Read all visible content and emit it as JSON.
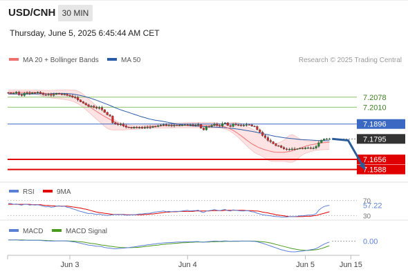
{
  "header": {
    "pair": "USD/CNH",
    "timeframe": "30 MIN",
    "datetime": "Thursday, June 5, 2025 6:45:44 AM CET"
  },
  "colors": {
    "candle_up": "#1e8a2e",
    "candle_down": "#d42a2a",
    "ma20": "#f07070",
    "bollinger_fill": "#fde3e3",
    "ma50": "#2a5caa",
    "support": "#e00000",
    "resistance_green": "#8cc26a",
    "pivot_blue": "#3a68c2",
    "arrow": "#2a5c9a",
    "rsi": "#5b7fd4",
    "rsi_ma": "#e00000",
    "macd": "#5b7fd4",
    "macd_signal": "#4a9a1e"
  },
  "chart_data": [
    {
      "type": "line",
      "panel": "price",
      "legend": [
        "MA 20 + Bollinger Bands",
        "MA 50"
      ],
      "legend_placement": "top-left",
      "credit": "Research © 2025 Trading Central",
      "ylim": [
        7.153,
        7.225
      ],
      "x_ticks": [
        "Jun 3",
        "Jun 4",
        "Jun 5",
        "Jun 15"
      ],
      "levels": [
        {
          "label": "7.2078",
          "value": 7.2078,
          "style": "resistance"
        },
        {
          "label": "7.2010",
          "value": 7.201,
          "style": "resistance"
        },
        {
          "label": "7.1896",
          "value": 7.1896,
          "style": "pivot"
        },
        {
          "label": "7.1795",
          "value": 7.1795,
          "style": "current"
        },
        {
          "label": "7.1656",
          "value": 7.1656,
          "style": "support"
        },
        {
          "label": "7.1588",
          "value": 7.1588,
          "style": "support"
        }
      ],
      "close": [
        7.2107,
        7.2102,
        7.2105,
        7.2112,
        7.2094,
        7.2089,
        7.2104,
        7.2107,
        7.2101,
        7.2108,
        7.2106,
        7.2112,
        7.2103,
        7.2095,
        7.2093,
        7.2097,
        7.209,
        7.2096,
        7.2103,
        7.21,
        7.2095,
        7.2098,
        7.209,
        7.2087,
        7.2079,
        7.2075,
        7.2059,
        7.2047,
        7.2037,
        7.2026,
        7.2015,
        7.2017,
        7.2009,
        7.2003,
        7.2007,
        7.1993,
        7.1975,
        7.1958,
        7.195,
        7.1904,
        7.1897,
        7.1891,
        7.1895,
        7.1884,
        7.1875,
        7.1873,
        7.1868,
        7.1875,
        7.1871,
        7.1872,
        7.187,
        7.1873,
        7.1875,
        7.1872,
        7.188,
        7.1879,
        7.1885,
        7.1888,
        7.1892,
        7.1887,
        7.1888,
        7.1883,
        7.1888,
        7.1886,
        7.1887,
        7.1889,
        7.1891,
        7.1889,
        7.1891,
        7.1887,
        7.1889,
        7.1893,
        7.1868,
        7.1856,
        7.1879,
        7.1878,
        7.1887,
        7.1896,
        7.1886,
        7.1882,
        7.1899,
        7.1904,
        7.1886,
        7.1879,
        7.1896,
        7.189,
        7.1889,
        7.1886,
        7.1888,
        7.1892,
        7.1891,
        7.1881,
        7.188,
        7.1857,
        7.1841,
        7.1818,
        7.1804,
        7.1785,
        7.1776,
        7.1762,
        7.1749,
        7.1748,
        7.1737,
        7.1727,
        7.1723,
        7.1725,
        7.1727,
        7.1726,
        7.1728,
        7.1732,
        7.1729,
        7.1735,
        7.1735,
        7.1732,
        7.1733,
        7.1744,
        7.1769,
        7.1787,
        7.1794,
        7.1795,
        7.1795
      ],
      "ma20": [
        7.211,
        7.211,
        7.211,
        7.211,
        7.211,
        7.211,
        7.211,
        7.211,
        7.211,
        7.211,
        7.211,
        7.2109,
        7.2108,
        7.2106,
        7.2103,
        7.2101,
        7.2099,
        7.2098,
        7.2099,
        7.21,
        7.2099,
        7.2096,
        7.2092,
        7.2088,
        7.2082,
        7.2075,
        7.2065,
        7.2054,
        7.2042,
        7.203,
        7.2018,
        7.2005,
        7.1993,
        7.1981,
        7.1969,
        7.1958,
        7.1947,
        7.1937,
        7.1927,
        7.1917,
        7.1908,
        7.1899,
        7.1891,
        7.1884,
        7.1878,
        7.1874,
        7.1872,
        7.1872,
        7.1872,
        7.1873,
        7.1874,
        7.1875,
        7.1877,
        7.1878,
        7.188,
        7.1881,
        7.1882,
        7.1883,
        7.1884,
        7.1885,
        7.1886,
        7.1886,
        7.1887,
        7.1887,
        7.1887,
        7.1887,
        7.1887,
        7.1887,
        7.1887,
        7.1887,
        7.1887,
        7.1887,
        7.1887,
        7.1886,
        7.1886,
        7.1886,
        7.1886,
        7.1887,
        7.1886,
        7.1884,
        7.1881,
        7.1876,
        7.187,
        7.1862,
        7.1853,
        7.1842,
        7.1829,
        7.1816,
        7.1802,
        7.1788,
        7.1775,
        7.1762,
        7.1752,
        7.1742,
        7.1734,
        7.1727,
        7.1721,
        7.1716,
        7.1711,
        7.1707,
        7.1705,
        7.1704,
        7.1704,
        7.1705,
        7.1707,
        7.171,
        7.1714,
        7.172,
        7.1726,
        7.1733,
        7.1739,
        7.1745,
        7.175,
        7.1755,
        7.1758,
        7.1762,
        7.1765,
        7.1768,
        7.177,
        7.1771,
        7.1772
      ],
      "bollinger_upper": [
        7.2126,
        7.2126,
        7.2126,
        7.2126,
        7.2126,
        7.2126,
        7.2126,
        7.2126,
        7.2126,
        7.2125,
        7.2125,
        7.2125,
        7.2124,
        7.2124,
        7.2124,
        7.2123,
        7.2124,
        7.2124,
        7.2125,
        7.2126,
        7.2127,
        7.2128,
        7.2128,
        7.2127,
        7.2126,
        7.2125,
        7.2119,
        7.211,
        7.2097,
        7.2082,
        7.2066,
        7.205,
        7.2034,
        7.2018,
        7.2003,
        7.1989,
        7.1975,
        7.1961,
        7.1948,
        7.1935,
        7.1921,
        7.191,
        7.1903,
        7.1899,
        7.1895,
        7.189,
        7.1887,
        7.1885,
        7.1885,
        7.1885,
        7.1886,
        7.1887,
        7.1888,
        7.1889,
        7.189,
        7.1891,
        7.1893,
        7.1894,
        7.1896,
        7.1897,
        7.1899,
        7.19,
        7.1901,
        7.1902,
        7.1903,
        7.1904,
        7.1905,
        7.1905,
        7.1906,
        7.1906,
        7.1906,
        7.1906,
        7.1906,
        7.1906,
        7.1906,
        7.1906,
        7.1906,
        7.1906,
        7.1903,
        7.1898,
        7.1897,
        7.1898,
        7.1903,
        7.1905,
        7.1907,
        7.1906,
        7.1905,
        7.1897,
        7.189,
        7.1883,
        7.1873,
        7.1863,
        7.1853,
        7.1842,
        7.1828,
        7.1815,
        7.18,
        7.1783,
        7.177,
        7.1763,
        7.1765,
        7.1769,
        7.1777,
        7.1787,
        7.1803,
        7.1819,
        7.1824,
        7.1817,
        7.1805,
        7.1795,
        7.1788,
        7.1783,
        7.1781,
        7.178,
        7.1781,
        7.1781,
        7.1782,
        7.1782,
        7.1782,
        7.1782,
        7.1782
      ],
      "bollinger_lower": [
        7.2096,
        7.2096,
        7.2096,
        7.2096,
        7.2096,
        7.2096,
        7.2096,
        7.2096,
        7.2097,
        7.2097,
        7.2098,
        7.2094,
        7.2089,
        7.2084,
        7.2077,
        7.2075,
        7.2073,
        7.207,
        7.2068,
        7.2067,
        7.2065,
        7.2062,
        7.2059,
        7.2056,
        7.205,
        7.2043,
        7.2033,
        7.2022,
        7.2008,
        7.1993,
        7.1977,
        7.1961,
        7.1944,
        7.1928,
        7.1912,
        7.1896,
        7.188,
        7.1866,
        7.1858,
        7.1855,
        7.1855,
        7.1856,
        7.1856,
        7.1856,
        7.1857,
        7.1858,
        7.1859,
        7.186,
        7.1861,
        7.1862,
        7.1863,
        7.1864,
        7.1865,
        7.1866,
        7.1867,
        7.1867,
        7.1868,
        7.1869,
        7.1869,
        7.187,
        7.187,
        7.187,
        7.1871,
        7.1871,
        7.1871,
        7.1871,
        7.1871,
        7.1871,
        7.1871,
        7.1871,
        7.1871,
        7.1871,
        7.187,
        7.187,
        7.187,
        7.1869,
        7.1869,
        7.1869,
        7.1869,
        7.1869,
        7.1866,
        7.1862,
        7.1855,
        7.1846,
        7.1834,
        7.182,
        7.1804,
        7.1786,
        7.1768,
        7.175,
        7.1733,
        7.1717,
        7.1703,
        7.1693,
        7.1685,
        7.1676,
        7.1664,
        7.1652,
        7.1645,
        7.1643,
        7.1642,
        7.1642,
        7.1642,
        7.1642,
        7.164,
        7.1637,
        7.1637,
        7.1643,
        7.1657,
        7.1675,
        7.1688,
        7.1697,
        7.1703,
        7.1709,
        7.1715,
        7.1718,
        7.172,
        7.1721,
        7.1722,
        7.1723,
        7.1725
      ],
      "ma50": [
        7.21,
        7.21,
        7.21,
        7.21,
        7.21,
        7.21,
        7.21,
        7.21,
        7.21,
        7.21,
        7.21,
        7.21,
        7.2101,
        7.2101,
        7.2101,
        7.2102,
        7.2102,
        7.2103,
        7.2103,
        7.2103,
        7.2103,
        7.2103,
        7.2102,
        7.2101,
        7.2099,
        7.2096,
        7.2093,
        7.2089,
        7.2085,
        7.208,
        7.2075,
        7.2069,
        7.2063,
        7.2057,
        7.205,
        7.2043,
        7.2036,
        7.2029,
        7.2022,
        7.2014,
        7.2006,
        7.1999,
        7.1992,
        7.1986,
        7.198,
        7.1974,
        7.1968,
        7.1962,
        7.1956,
        7.195,
        7.1944,
        7.1939,
        7.1934,
        7.1929,
        7.1925,
        7.1922,
        7.1919,
        7.1916,
        7.1913,
        7.191,
        7.1906,
        7.1903,
        7.1899,
        7.1896,
        7.1893,
        7.189,
        7.1888,
        7.1886,
        7.1884,
        7.1883,
        7.1882,
        7.1881,
        7.188,
        7.1879,
        7.1878,
        7.1877,
        7.1876,
        7.1875,
        7.1874,
        7.1873,
        7.1872,
        7.1871,
        7.1869,
        7.1867,
        7.1865,
        7.1863,
        7.1861,
        7.1858,
        7.1855,
        7.1852,
        7.1849,
        7.1846,
        7.1843,
        7.1839,
        7.1835,
        7.1831,
        7.1827,
        7.1823,
        7.1819,
        7.1815,
        7.1812,
        7.1809,
        7.1806,
        7.1803,
        7.1801,
        7.1799,
        7.1797,
        7.1795,
        7.1793,
        7.1791,
        7.179,
        7.1789,
        7.1788,
        7.1787,
        7.1786,
        7.1785,
        7.1784,
        7.1784,
        7.1783,
        7.1783,
        7.1783
      ],
      "projection": [
        [
          121,
          7.1795
        ],
        [
          127,
          7.1785
        ],
        [
          133,
          7.1595
        ]
      ]
    },
    {
      "type": "line",
      "panel": "rsi",
      "legend": [
        "RSI",
        "9MA"
      ],
      "legend_placement": "top-left",
      "ylim": [
        25,
        75
      ],
      "y_ticks": [
        {
          "label": "70",
          "value": 70
        },
        {
          "label": "30",
          "value": 30
        }
      ],
      "current_label": "57.22",
      "rsi": [
        62,
        62,
        60,
        61,
        59,
        58,
        60,
        60,
        58,
        59,
        58,
        59,
        57,
        55,
        53,
        54,
        52,
        53,
        55,
        56,
        54,
        55,
        52,
        51,
        48,
        46,
        43,
        41,
        39,
        37,
        35,
        36,
        34,
        33,
        34,
        32,
        31,
        30,
        31,
        32,
        33,
        32,
        33,
        32,
        31,
        31,
        32,
        32,
        33,
        34,
        34,
        35,
        36,
        36,
        38,
        39,
        40,
        41,
        42,
        40,
        41,
        40,
        41,
        41,
        41,
        42,
        43,
        44,
        42,
        43,
        43,
        44,
        40,
        38,
        42,
        43,
        44,
        46,
        44,
        43,
        45,
        46,
        43,
        42,
        45,
        44,
        43,
        42,
        42,
        43,
        42,
        40,
        39,
        36,
        34,
        32,
        31,
        30,
        29,
        28,
        27,
        27,
        26,
        26,
        26,
        27,
        27,
        27,
        28,
        29,
        29,
        30,
        31,
        31,
        32,
        35,
        44,
        50,
        54,
        56,
        57.22
      ],
      "ma9": [
        60,
        60,
        60,
        60,
        60,
        60,
        60,
        60,
        60,
        59,
        59,
        59,
        59,
        58,
        57,
        57,
        56,
        56,
        55,
        55,
        55,
        55,
        55,
        54,
        53,
        52,
        51,
        50,
        48,
        47,
        45,
        43,
        41,
        39,
        38,
        37,
        36,
        35,
        34,
        33,
        33,
        33,
        33,
        33,
        32,
        32,
        32,
        32,
        32,
        32,
        32,
        33,
        33,
        34,
        34,
        35,
        36,
        37,
        38,
        39,
        39,
        40,
        40,
        40,
        41,
        41,
        41,
        41,
        41,
        41,
        42,
        42,
        42,
        42,
        42,
        42,
        43,
        43,
        43,
        43,
        43,
        44,
        44,
        44,
        44,
        44,
        44,
        44,
        44,
        43,
        43,
        43,
        42,
        42,
        41,
        39,
        38,
        37,
        35,
        34,
        32,
        31,
        30,
        29,
        28,
        27,
        27,
        27,
        27,
        27,
        27,
        28,
        28,
        28,
        29,
        30,
        32,
        34,
        36,
        38,
        40
      ]
    },
    {
      "type": "line",
      "panel": "macd",
      "legend": [
        "MACD",
        "MACD Signal"
      ],
      "legend_placement": "top-left",
      "ylim": [
        -0.0055,
        0.0025
      ],
      "current_label": "0.00",
      "macd": [
        0.0005,
        0.0005,
        0.0005,
        0.0006,
        0.0004,
        0.0003,
        0.0004,
        0.0004,
        0.0003,
        0.0004,
        0.0003,
        0.0004,
        0.0003,
        0.0002,
        0.0001,
        0.0001,
        0.0,
        0.0,
        0.0001,
        0.0001,
        0.0001,
        0.0001,
        0.0,
        -0.0001,
        -0.0003,
        -0.0004,
        -0.0007,
        -0.0009,
        -0.0012,
        -0.0014,
        -0.0017,
        -0.0018,
        -0.002,
        -0.0022,
        -0.0022,
        -0.0024,
        -0.0027,
        -0.0029,
        -0.003,
        -0.0032,
        -0.0033,
        -0.0032,
        -0.0031,
        -0.003,
        -0.0029,
        -0.0028,
        -0.0026,
        -0.0025,
        -0.0023,
        -0.0021,
        -0.0019,
        -0.0018,
        -0.0016,
        -0.0015,
        -0.0013,
        -0.0012,
        -0.001,
        -0.0009,
        -0.0008,
        -0.0007,
        -0.0006,
        -0.0006,
        -0.0005,
        -0.0004,
        -0.0004,
        -0.0004,
        -0.0003,
        -0.0003,
        -0.0003,
        -0.0003,
        -0.0002,
        -0.0002,
        -0.0004,
        -0.0005,
        -0.0003,
        -0.0002,
        -0.0001,
        0.0,
        0.0,
        -0.0001,
        0.0,
        0.0001,
        0.0,
        -0.0001,
        0.0,
        0.0,
        0.0,
        0.0,
        0.0,
        0.0,
        0.0,
        -0.0001,
        -0.0001,
        -0.0003,
        -0.0006,
        -0.0009,
        -0.0013,
        -0.0017,
        -0.0021,
        -0.0025,
        -0.0029,
        -0.0033,
        -0.0037,
        -0.004,
        -0.0043,
        -0.0045,
        -0.0046,
        -0.0046,
        -0.0045,
        -0.0044,
        -0.0043,
        -0.0041,
        -0.0039,
        -0.0037,
        -0.0035,
        -0.0032,
        -0.0026,
        -0.0019,
        -0.0013,
        -0.0008,
        -0.0004
      ],
      "signal": [
        0.0005,
        0.0005,
        0.0005,
        0.0005,
        0.0005,
        0.0005,
        0.0005,
        0.0004,
        0.0004,
        0.0004,
        0.0004,
        0.0004,
        0.0004,
        0.0003,
        0.0003,
        0.0002,
        0.0002,
        0.0001,
        0.0001,
        0.0001,
        0.0001,
        0.0001,
        0.0001,
        0.0,
        0.0,
        -0.0001,
        -0.0002,
        -0.0003,
        -0.0004,
        -0.0006,
        -0.0008,
        -0.001,
        -0.0011,
        -0.0013,
        -0.0015,
        -0.0017,
        -0.0018,
        -0.002,
        -0.0022,
        -0.0023,
        -0.0025,
        -0.0026,
        -0.0027,
        -0.0028,
        -0.0028,
        -0.0028,
        -0.0028,
        -0.0027,
        -0.0027,
        -0.0026,
        -0.0025,
        -0.0023,
        -0.0022,
        -0.0021,
        -0.0019,
        -0.0018,
        -0.0017,
        -0.0015,
        -0.0014,
        -0.0013,
        -0.0012,
        -0.0011,
        -0.001,
        -0.0009,
        -0.0008,
        -0.0007,
        -0.0007,
        -0.0006,
        -0.0005,
        -0.0005,
        -0.0004,
        -0.0004,
        -0.0004,
        -0.0004,
        -0.0004,
        -0.0004,
        -0.0003,
        -0.0003,
        -0.0002,
        -0.0002,
        -0.0002,
        -0.0001,
        -0.0001,
        -0.0001,
        -0.0001,
        -0.0001,
        -0.0001,
        0.0,
        0.0,
        0.0,
        0.0,
        0.0,
        0.0,
        -0.0001,
        -0.0002,
        -0.0003,
        -0.0004,
        -0.0006,
        -0.0008,
        -0.0011,
        -0.0014,
        -0.0017,
        -0.002,
        -0.0023,
        -0.0026,
        -0.0029,
        -0.0032,
        -0.0034,
        -0.0036,
        -0.0038,
        -0.0039,
        -0.004,
        -0.004,
        -0.0039,
        -0.0038,
        -0.0037,
        -0.0035,
        -0.0032,
        -0.0028,
        -0.0024,
        -0.002
      ]
    }
  ]
}
